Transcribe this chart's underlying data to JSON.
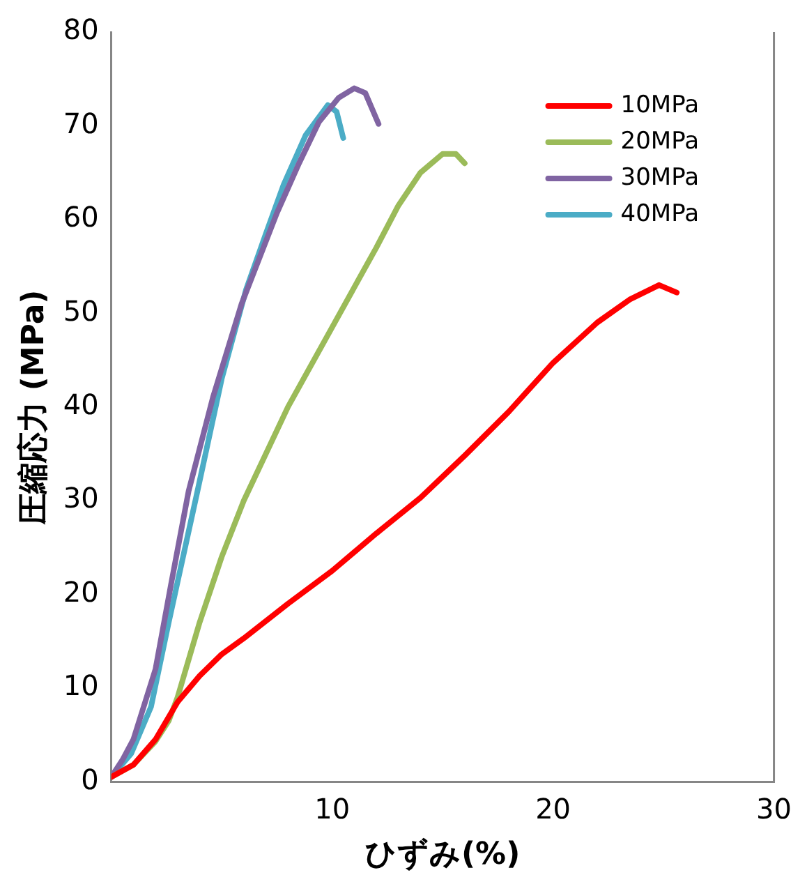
{
  "chart_data": {
    "type": "line",
    "xlabel": "ひずみ(%)",
    "ylabel": "圧縮応力 (MPa)",
    "xlim": [
      0,
      30
    ],
    "xticks": [
      {
        "value": 0,
        "label": null
      },
      10,
      20,
      30
    ],
    "ylim": [
      0,
      80
    ],
    "yticks": [
      0,
      10,
      20,
      30,
      40,
      50,
      60,
      70,
      80
    ],
    "grid": false,
    "legend": "top right",
    "marker": "none",
    "line_style": "solid",
    "series": [
      {
        "name": "10MPa",
        "color": "#ff0000",
        "x": [
          0,
          1,
          2,
          3,
          4,
          5,
          6,
          8,
          10,
          12,
          14,
          16,
          18,
          20,
          22,
          23.5,
          24.8,
          25.6
        ],
        "values": [
          0.5,
          1.8,
          4.5,
          8.5,
          11.3,
          13.6,
          15.3,
          19,
          22.5,
          26.5,
          30.3,
          34.8,
          39.5,
          44.7,
          49,
          51.5,
          53,
          52.2
        ]
      },
      {
        "name": "20MPa",
        "color": "#9bbb59",
        "x": [
          0,
          1,
          2,
          2.6,
          3,
          4,
          5,
          6,
          8,
          10,
          12,
          13,
          14,
          15,
          15.6,
          16
        ],
        "values": [
          0.5,
          1.8,
          4.3,
          6.5,
          9,
          17,
          24,
          30,
          40,
          48.5,
          57,
          61.5,
          65,
          67,
          67,
          66
        ]
      },
      {
        "name": "30MPa",
        "color": "#8064a2",
        "x": [
          0,
          0.5,
          1,
          2,
          2.7,
          3.5,
          4.6,
          5.9,
          7.5,
          8.5,
          9.4,
          10.3,
          11,
          11.5,
          12.1
        ],
        "values": [
          0.5,
          2.3,
          4.5,
          12,
          21,
          31,
          41,
          51,
          60.7,
          66,
          70.4,
          73,
          74,
          73.5,
          70.2
        ]
      },
      {
        "name": "40MPa",
        "color": "#4bacc6",
        "x": [
          0,
          0.9,
          1.8,
          2.6,
          3.9,
          5,
          6.1,
          7,
          7.8,
          8.8,
          9.8,
          10.2,
          10.5
        ],
        "values": [
          0.5,
          3,
          8,
          17,
          31,
          43,
          52.5,
          58.5,
          63.7,
          69,
          72.2,
          71.5,
          68.7
        ]
      }
    ]
  }
}
